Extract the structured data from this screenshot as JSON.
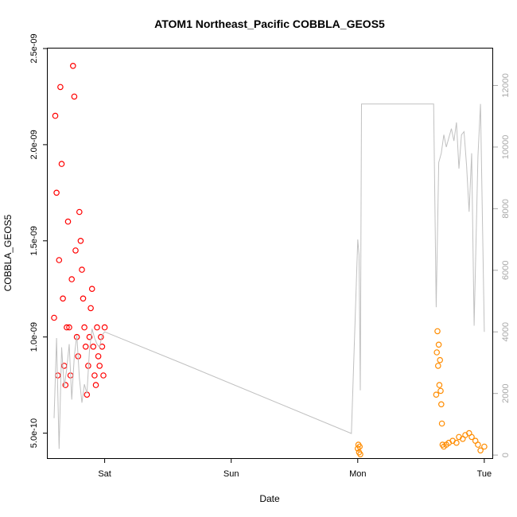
{
  "chart_data": {
    "type": "scatter",
    "title": "ATOM1 Northeast_Pacific COBBLA_GEOS5",
    "xlabel": "Date",
    "ylabel": "COBBLA_GEOS5",
    "x_unit": "days",
    "x_ticks": [
      {
        "label": "Sat",
        "value": 0
      },
      {
        "label": "Sun",
        "value": 1
      },
      {
        "label": "Mon",
        "value": 2
      },
      {
        "label": "Tue",
        "value": 3
      }
    ],
    "xlim": [
      -0.45,
      3.07
    ],
    "ylim": [
      3.7e-10,
      2.5e-09
    ],
    "y_ticks": [
      {
        "label": "5.0e-10",
        "value": 5e-10
      },
      {
        "label": "1.0e-09",
        "value": 1e-09
      },
      {
        "label": "1.5e-09",
        "value": 1.5e-09
      },
      {
        "label": "2.0e-09",
        "value": 2e-09
      },
      {
        "label": "2.5e-09",
        "value": 2.5e-09
      }
    ],
    "y2lim": [
      -100,
      13200
    ],
    "y2_ticks": [
      {
        "label": "0",
        "value": 0
      },
      {
        "label": "2000",
        "value": 2000
      },
      {
        "label": "4000",
        "value": 4000
      },
      {
        "label": "6000",
        "value": 6000
      },
      {
        "label": "8000",
        "value": 8000
      },
      {
        "label": "10000",
        "value": 10000
      },
      {
        "label": "12000",
        "value": 12000
      }
    ],
    "grid": false,
    "series": [
      {
        "color": "#ff0000",
        "marker": "open-circle",
        "axis": "left",
        "x": [
          -0.4,
          -0.39,
          -0.38,
          -0.37,
          -0.36,
          -0.35,
          -0.34,
          -0.33,
          -0.32,
          -0.31,
          -0.3,
          -0.29,
          -0.28,
          -0.27,
          -0.26,
          -0.25,
          -0.24,
          -0.23,
          -0.22,
          -0.21,
          -0.2,
          -0.19,
          -0.18,
          -0.17,
          -0.16,
          -0.15,
          -0.14,
          -0.13,
          -0.12,
          -0.11,
          -0.1,
          -0.09,
          -0.08,
          -0.07,
          -0.06,
          -0.05,
          -0.04,
          -0.03,
          -0.02,
          -0.01,
          0.0
        ],
        "y": [
          1.1e-09,
          2.15e-09,
          1.75e-09,
          8e-10,
          1.4e-09,
          2.3e-09,
          1.9e-09,
          1.2e-09,
          8.5e-10,
          7.5e-10,
          1.05e-09,
          1.6e-09,
          1.05e-09,
          8e-10,
          1.3e-09,
          2.41e-09,
          2.25e-09,
          1.45e-09,
          1e-09,
          9e-10,
          1.65e-09,
          1.5e-09,
          1.35e-09,
          1.2e-09,
          1.05e-09,
          9.5e-10,
          7e-10,
          8.5e-10,
          1e-09,
          1.15e-09,
          1.25e-09,
          9.5e-10,
          8e-10,
          7.5e-10,
          1.05e-09,
          9e-10,
          8.5e-10,
          1e-09,
          9.5e-10,
          8e-10,
          1.05e-09
        ]
      },
      {
        "color": "#ff8c00",
        "marker": "open-circle",
        "axis": "left",
        "x": [
          2.0,
          2.005,
          2.01,
          2.015,
          2.02,
          2.62,
          2.625,
          2.63,
          2.635,
          2.64,
          2.645,
          2.65,
          2.655,
          2.66,
          2.665,
          2.67,
          2.68,
          2.7,
          2.72,
          2.75,
          2.78,
          2.8,
          2.83,
          2.85,
          2.88,
          2.9,
          2.93,
          2.95,
          2.97,
          3.0
        ],
        "y": [
          4.2e-10,
          4.4e-10,
          4e-10,
          4.3e-10,
          3.9e-10,
          7e-10,
          9.2e-10,
          1.03e-09,
          8.5e-10,
          9.6e-10,
          7.5e-10,
          8.8e-10,
          7.2e-10,
          6.5e-10,
          5.5e-10,
          4.4e-10,
          4.3e-10,
          4.4e-10,
          4.5e-10,
          4.6e-10,
          4.5e-10,
          4.8e-10,
          4.7e-10,
          4.9e-10,
          5e-10,
          4.8e-10,
          4.6e-10,
          4.4e-10,
          4.1e-10,
          4.3e-10
        ]
      },
      {
        "color": "#c0c0c0",
        "marker": "line",
        "axis": "right",
        "x": [
          -0.4,
          -0.38,
          -0.36,
          -0.34,
          -0.32,
          -0.3,
          -0.28,
          -0.26,
          -0.24,
          -0.22,
          -0.2,
          -0.18,
          -0.16,
          -0.14,
          -0.12,
          -0.1,
          -0.08,
          -0.06,
          -0.04,
          -0.02,
          0.0,
          0.6,
          1.95,
          2.0,
          2.01,
          2.02,
          2.03,
          2.6,
          2.62,
          2.64,
          2.66,
          2.68,
          2.7,
          2.72,
          2.74,
          2.76,
          2.78,
          2.8,
          2.82,
          2.84,
          2.86,
          2.88,
          2.9,
          2.92,
          2.95,
          2.97,
          3.0
        ],
        "y": [
          1200,
          3800,
          200,
          3500,
          2200,
          2800,
          3600,
          1800,
          3200,
          3900,
          2500,
          1700,
          2300,
          2000,
          3400,
          4100,
          3800,
          3600,
          3500,
          3900,
          4000,
          3000,
          700,
          7000,
          6500,
          2100,
          11400,
          11400,
          4800,
          9500,
          9800,
          10400,
          10000,
          10300,
          10600,
          10200,
          10800,
          9300,
          10400,
          10500,
          9400,
          7900,
          9800,
          4200,
          9700,
          11400,
          4000
        ]
      }
    ]
  }
}
